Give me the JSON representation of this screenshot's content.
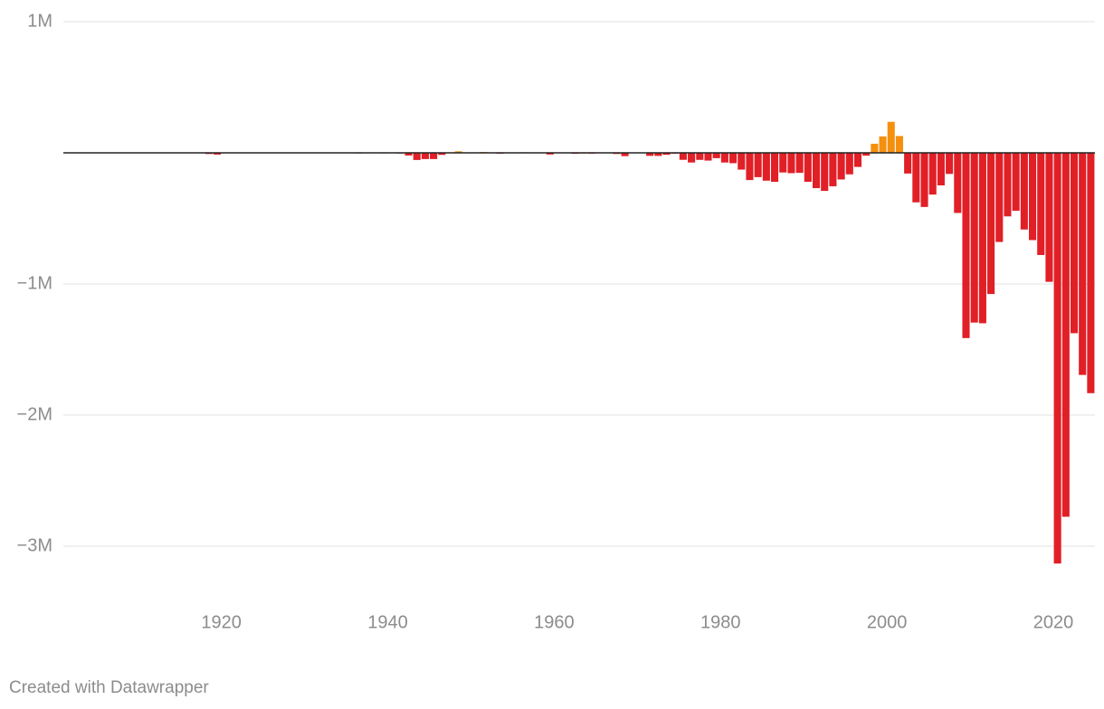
{
  "chart_data": {
    "type": "bar",
    "x": [
      1901,
      1902,
      1903,
      1904,
      1905,
      1906,
      1907,
      1908,
      1909,
      1910,
      1911,
      1912,
      1913,
      1914,
      1915,
      1916,
      1917,
      1918,
      1919,
      1920,
      1921,
      1922,
      1923,
      1924,
      1925,
      1926,
      1927,
      1928,
      1929,
      1930,
      1931,
      1932,
      1933,
      1934,
      1935,
      1936,
      1937,
      1938,
      1939,
      1940,
      1941,
      1942,
      1943,
      1944,
      1945,
      1946,
      1947,
      1948,
      1949,
      1950,
      1951,
      1952,
      1953,
      1954,
      1955,
      1956,
      1957,
      1958,
      1959,
      1960,
      1961,
      1962,
      1963,
      1964,
      1965,
      1966,
      1967,
      1968,
      1969,
      1970,
      1971,
      1972,
      1973,
      1974,
      1975,
      1976,
      1977,
      1978,
      1979,
      1980,
      1981,
      1982,
      1983,
      1984,
      1985,
      1986,
      1987,
      1988,
      1989,
      1990,
      1991,
      1992,
      1993,
      1994,
      1995,
      1996,
      1997,
      1998,
      1999,
      2000,
      2001,
      2002,
      2003,
      2004,
      2005,
      2006,
      2007,
      2008,
      2009,
      2010,
      2011,
      2012,
      2013,
      2014,
      2015,
      2016,
      2017,
      2018,
      2019,
      2020,
      2021,
      2022,
      2023,
      2024
    ],
    "values": [
      63,
      77,
      45,
      -43,
      -23,
      25,
      87,
      -57,
      -89,
      -18,
      11,
      3,
      0,
      0,
      -63,
      48,
      -853,
      -9032,
      -13363,
      291,
      509,
      736,
      713,
      963,
      717,
      865,
      1155,
      939,
      734,
      738,
      -462,
      -2735,
      -2602,
      -3630,
      -2791,
      -4425,
      -2777,
      -1177,
      -3862,
      -2920,
      -4941,
      -20503,
      -54554,
      -47557,
      -47553,
      -15936,
      4018,
      11796,
      580,
      -3119,
      6102,
      -1519,
      -6493,
      -1154,
      -2993,
      3947,
      3412,
      -2769,
      -12849,
      301,
      -3335,
      -7146,
      -4756,
      -5915,
      -1411,
      -3698,
      -8643,
      -25161,
      3242,
      -2842,
      -23033,
      -23373,
      -14908,
      -6135,
      -53242,
      -73732,
      -53659,
      -59185,
      -40726,
      -73830,
      -78968,
      -127977,
      -207802,
      -185367,
      -212308,
      -221227,
      -149730,
      -155178,
      -152639,
      -221036,
      -269238,
      -290321,
      -255051,
      -203186,
      -163952,
      -107431,
      -21884,
      69270,
      125610,
      236241,
      128236,
      -157758,
      -377585,
      -412727,
      -318346,
      -248181,
      -160701,
      -458553,
      -1412688,
      -1294373,
      -1299593,
      -1076573,
      -679775,
      -484602,
      -441960,
      -584651,
      -665446,
      -779137,
      -983588,
      -3131917,
      -2775289,
      -1375652,
      -1693691,
      -1832817
    ],
    "positive_color": "#f5900f",
    "negative_color": "#e11f26",
    "xlim": [
      1901,
      2025
    ],
    "xticks": [
      1920,
      1940,
      1960,
      1980,
      2000,
      2020
    ],
    "ylim": [
      -3400000,
      1000000
    ],
    "yticks": [
      {
        "value": 1000000,
        "label": "1M"
      },
      {
        "value": -1000000,
        "label": "−1M"
      },
      {
        "value": -2000000,
        "label": "−2M"
      },
      {
        "value": -3000000,
        "label": "−3M"
      }
    ],
    "grid": true
  },
  "footer": "Created with Datawrapper"
}
